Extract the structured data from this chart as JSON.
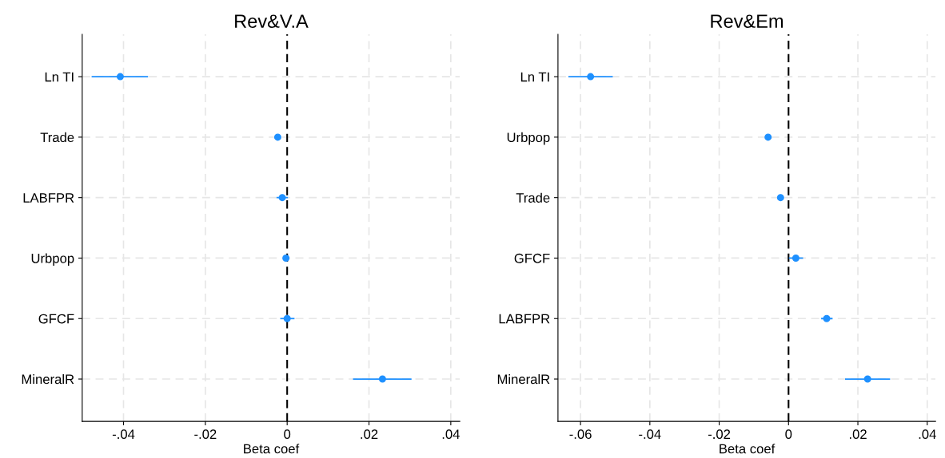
{
  "chart_data": [
    {
      "type": "scatter",
      "orientation": "horizontal",
      "title": "Rev&V.A",
      "xlabel": "Beta coef",
      "categories": [
        "Ln TI",
        "Trade",
        "LABFPR",
        "Urbpop",
        "GFCF",
        "MineralR"
      ],
      "series": [
        {
          "color": "#1e90ff",
          "values": [
            -0.0408,
            -0.0023,
            -0.0012,
            -0.0003,
            0,
            0.0233
          ],
          "errors": [
            [
              -0.0478,
              -0.034
            ],
            null,
            [
              -0.0026,
              0.0002
            ],
            null,
            [
              -0.0017,
              0.0018
            ],
            [
              0.0161,
              0.0304
            ]
          ]
        }
      ],
      "xlim": [
        -0.0501,
        0.0422
      ],
      "xticks": [
        {
          "value": -0.04,
          "label": "-.04"
        },
        {
          "value": -0.02,
          "label": "-.02"
        },
        0,
        {
          "value": 0.02,
          "label": ".02"
        },
        {
          "value": 0.04,
          "label": ".04"
        }
      ],
      "ref_lines": [
        {
          "axis": "x",
          "value": 0,
          "color": "#000000",
          "line_style": "dashed"
        }
      ],
      "grid": true,
      "marker": "circle"
    },
    {
      "type": "scatter",
      "orientation": "horizontal",
      "title": "Rev&Em",
      "xlabel": "Beta coef",
      "categories": [
        "Ln TI",
        "Urbpop",
        "Trade",
        "GFCF",
        "LABFPR",
        "MineralR"
      ],
      "series": [
        {
          "color": "#1e90ff",
          "values": [
            -0.0571,
            -0.0059,
            -0.0023,
            0.0021,
            0.011,
            0.0228
          ],
          "errors": [
            [
              -0.0635,
              -0.0507
            ],
            null,
            null,
            [
              0.0001,
              0.0042
            ],
            [
              0.0094,
              0.0127
            ],
            [
              0.0163,
              0.0293
            ]
          ]
        }
      ],
      "xlim": [
        -0.0665,
        0.0424
      ],
      "xticks": [
        {
          "value": -0.06,
          "label": "-.06"
        },
        {
          "value": -0.04,
          "label": "-.04"
        },
        {
          "value": -0.02,
          "label": "-.02"
        },
        0,
        {
          "value": 0.02,
          "label": ".02"
        },
        {
          "value": 0.04,
          "label": ".04"
        }
      ],
      "ref_lines": [
        {
          "axis": "x",
          "value": 0,
          "color": "#000000",
          "line_style": "dashed"
        }
      ],
      "grid": true,
      "marker": "circle"
    }
  ]
}
